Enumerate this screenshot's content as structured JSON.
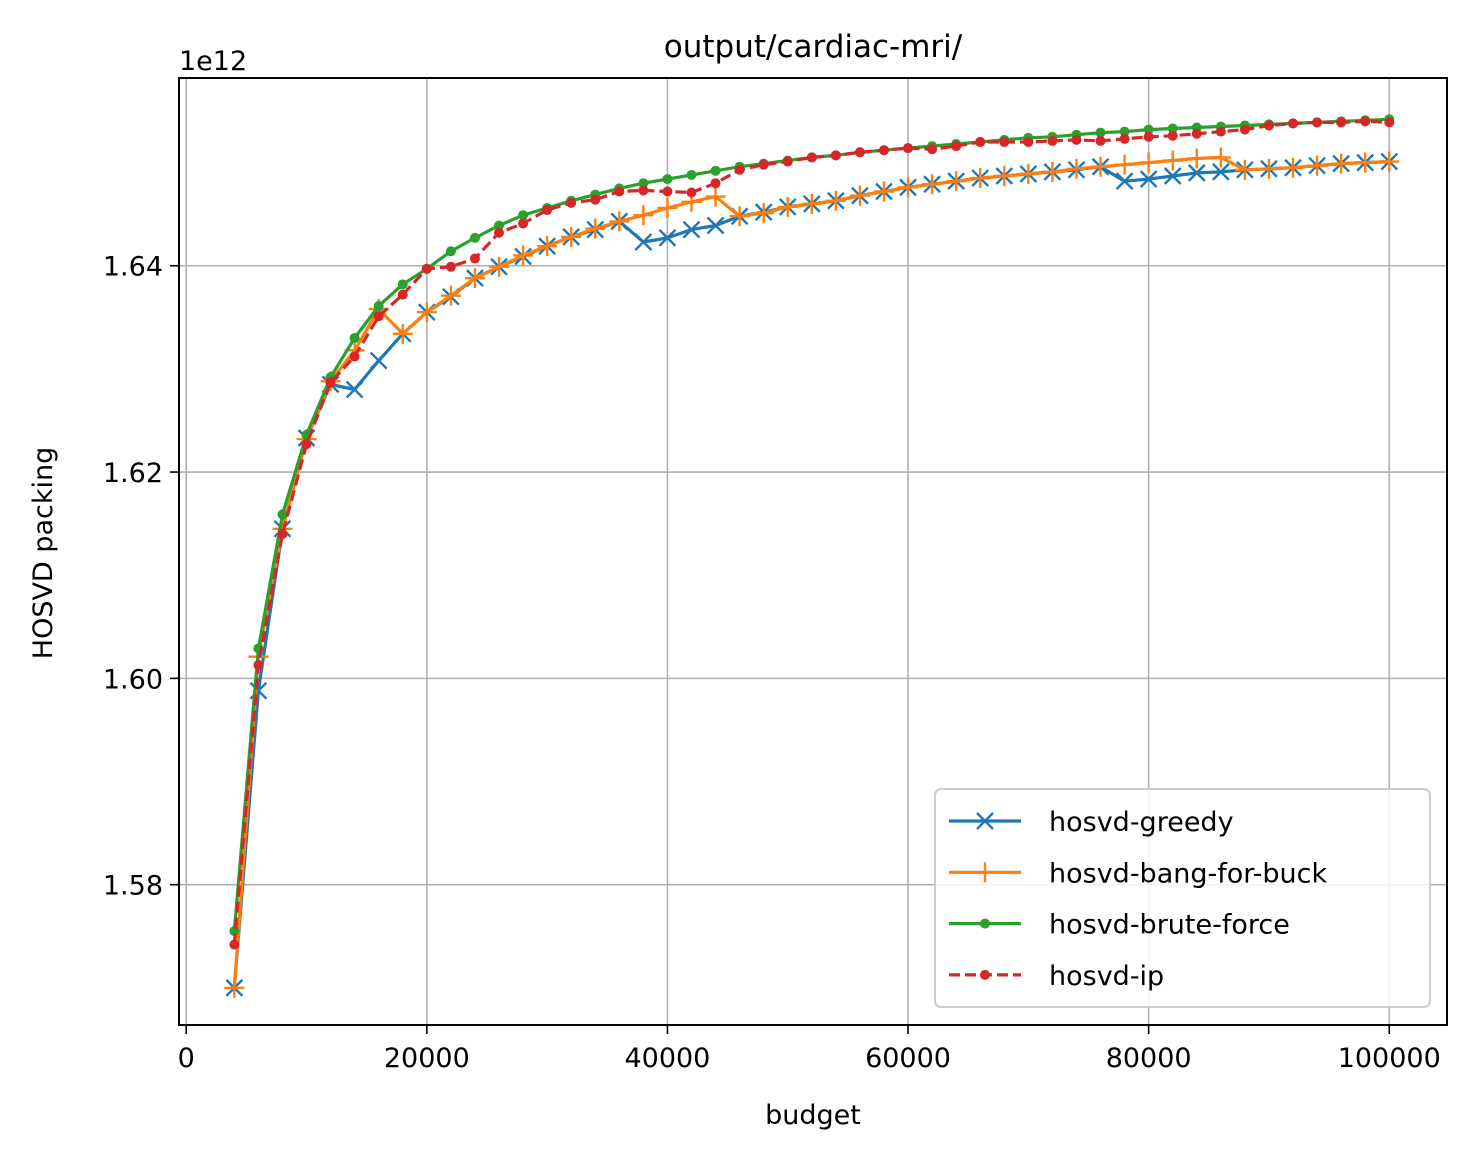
{
  "chart_data": {
    "type": "line",
    "title": "output/cardiac-mri/",
    "xlabel": "budget",
    "ylabel": "HOSVD packing",
    "offset_label": "1e12",
    "xlim": [
      -600,
      104800
    ],
    "ylim": [
      1.5664,
      1.6582
    ],
    "xticks": [
      0,
      20000,
      40000,
      60000,
      80000,
      100000
    ],
    "xtick_labels": [
      "0",
      "20000",
      "40000",
      "60000",
      "80000",
      "100000"
    ],
    "yticks": [
      1.58,
      1.6,
      1.62,
      1.64
    ],
    "ytick_labels": [
      "1.58",
      "1.60",
      "1.62",
      "1.64"
    ],
    "grid": true,
    "legend_position": "lower right",
    "x": [
      4000,
      6000,
      8000,
      10000,
      12000,
      14000,
      16000,
      18000,
      20000,
      22000,
      24000,
      26000,
      28000,
      30000,
      32000,
      34000,
      36000,
      38000,
      40000,
      42000,
      44000,
      46000,
      48000,
      50000,
      52000,
      54000,
      56000,
      58000,
      60000,
      62000,
      64000,
      66000,
      68000,
      70000,
      72000,
      74000,
      76000,
      78000,
      80000,
      82000,
      84000,
      86000,
      88000,
      90000,
      92000,
      94000,
      96000,
      98000,
      100000
    ],
    "series": [
      {
        "name": "hosvd-greedy",
        "color": "#1f77b4",
        "marker": "x",
        "linestyle": "solid",
        "values": [
          1.57,
          1.5988,
          1.6145,
          1.6233,
          1.6285,
          1.628,
          1.6308,
          1.6334,
          1.6355,
          1.637,
          1.6388,
          1.6399,
          1.6409,
          1.6419,
          1.6428,
          1.6435,
          1.6443,
          1.6423,
          1.6427,
          1.6435,
          1.6439,
          1.6448,
          1.6452,
          1.6457,
          1.646,
          1.6463,
          1.6468,
          1.6472,
          1.6476,
          1.6479,
          1.6482,
          1.6485,
          1.6487,
          1.6489,
          1.6491,
          1.6493,
          1.6496,
          1.6482,
          1.6484,
          1.6487,
          1.649,
          1.6491,
          1.6493,
          1.6494,
          1.6495,
          1.6497,
          1.6499,
          1.65,
          1.6501
        ]
      },
      {
        "name": "hosvd-bang-for-buck",
        "color": "#ff7f0e",
        "marker": "+",
        "linestyle": "solid",
        "values": [
          1.57,
          1.6021,
          1.6145,
          1.6232,
          1.6288,
          1.6318,
          1.6358,
          1.6334,
          1.6355,
          1.6371,
          1.6388,
          1.6399,
          1.641,
          1.6419,
          1.6428,
          1.6436,
          1.6443,
          1.6449,
          1.6456,
          1.6462,
          1.6467,
          1.6448,
          1.6451,
          1.6457,
          1.646,
          1.6463,
          1.6468,
          1.6472,
          1.6476,
          1.6479,
          1.6482,
          1.6485,
          1.6487,
          1.6489,
          1.6491,
          1.6494,
          1.6496,
          1.6498,
          1.65,
          1.6502,
          1.6504,
          1.6505,
          1.6493,
          1.6494,
          1.6495,
          1.6497,
          1.6499,
          1.65,
          1.6501
        ]
      },
      {
        "name": "hosvd-brute-force",
        "color": "#2ca02c",
        "marker": "o",
        "linestyle": "solid",
        "values": [
          1.5755,
          1.6029,
          1.6159,
          1.6236,
          1.6292,
          1.633,
          1.6361,
          1.6382,
          1.6397,
          1.6414,
          1.6427,
          1.6439,
          1.6449,
          1.6456,
          1.6463,
          1.6469,
          1.6475,
          1.648,
          1.6484,
          1.6488,
          1.6492,
          1.6496,
          1.6499,
          1.6502,
          1.6505,
          1.6507,
          1.651,
          1.6512,
          1.6514,
          1.6516,
          1.6518,
          1.652,
          1.6522,
          1.6524,
          1.6525,
          1.6527,
          1.6529,
          1.653,
          1.6532,
          1.6533,
          1.6534,
          1.6535,
          1.6536,
          1.6537,
          1.6538,
          1.6539,
          1.654,
          1.6541,
          1.6542
        ]
      },
      {
        "name": "hosvd-ip",
        "color": "#d62728",
        "marker": "o",
        "linestyle": "dashed",
        "values": [
          1.5742,
          1.6013,
          1.614,
          1.6227,
          1.6287,
          1.6312,
          1.6351,
          1.6372,
          1.6397,
          1.6399,
          1.6407,
          1.6432,
          1.6441,
          1.6454,
          1.6461,
          1.6464,
          1.6472,
          1.6473,
          1.6472,
          1.6471,
          1.648,
          1.6493,
          1.6498,
          1.6501,
          1.6505,
          1.6507,
          1.651,
          1.6512,
          1.6514,
          1.6513,
          1.6516,
          1.652,
          1.652,
          1.652,
          1.6521,
          1.6522,
          1.6521,
          1.6523,
          1.6525,
          1.6526,
          1.6528,
          1.653,
          1.6532,
          1.6536,
          1.6538,
          1.6539,
          1.6539,
          1.654,
          1.6539
        ]
      }
    ]
  }
}
